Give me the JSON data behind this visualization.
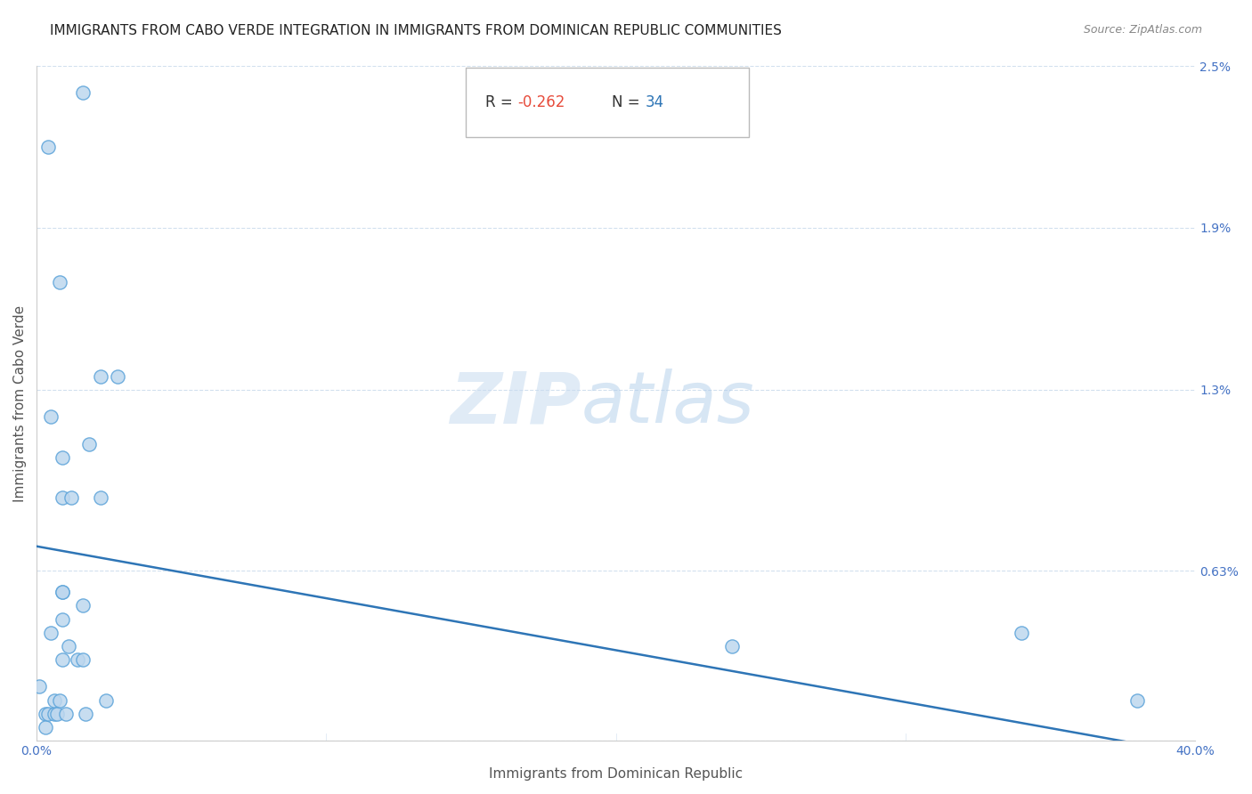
{
  "title": "IMMIGRANTS FROM CABO VERDE INTEGRATION IN IMMIGRANTS FROM DOMINICAN REPUBLIC COMMUNITIES",
  "source": "Source: ZipAtlas.com",
  "xlabel": "Immigrants from Dominican Republic",
  "ylabel": "Immigrants from Cabo Verde",
  "R_value": -0.262,
  "N_value": 34,
  "xlim": [
    0.0,
    0.4
  ],
  "ylim": [
    0.0,
    0.025
  ],
  "yticks": [
    0.0,
    0.0063,
    0.013,
    0.019,
    0.025
  ],
  "ytick_labels": [
    "",
    "0.63%",
    "1.3%",
    "1.9%",
    "2.5%"
  ],
  "xticks": [
    0.0,
    0.1,
    0.2,
    0.3,
    0.4
  ],
  "xtick_labels": [
    "0.0%",
    "",
    "",
    "",
    "40.0%"
  ],
  "scatter_x": [
    0.004,
    0.016,
    0.008,
    0.028,
    0.022,
    0.005,
    0.009,
    0.009,
    0.009,
    0.012,
    0.018,
    0.009,
    0.009,
    0.016,
    0.022,
    0.005,
    0.009,
    0.011,
    0.014,
    0.016,
    0.001,
    0.003,
    0.003,
    0.004,
    0.006,
    0.006,
    0.007,
    0.008,
    0.01,
    0.017,
    0.024,
    0.24,
    0.34,
    0.38
  ],
  "scatter_y": [
    0.022,
    0.024,
    0.017,
    0.0135,
    0.0135,
    0.012,
    0.0105,
    0.009,
    0.0055,
    0.009,
    0.011,
    0.0055,
    0.0045,
    0.005,
    0.009,
    0.004,
    0.003,
    0.0035,
    0.003,
    0.003,
    0.002,
    0.001,
    0.0005,
    0.001,
    0.001,
    0.0015,
    0.001,
    0.0015,
    0.001,
    0.001,
    0.0015,
    0.0035,
    0.004,
    0.0015
  ],
  "scatter_color_fill": "#BDD7EE",
  "scatter_color_edge": "#5BA3D9",
  "scatter_size": 120,
  "line_color": "#2E75B6",
  "line_width": 1.8,
  "regression_x0": 0.0,
  "regression_y0": 0.0072,
  "regression_x1": 0.4,
  "regression_y1": -0.0005,
  "grid_color": "#C0D4E8",
  "grid_style": "--",
  "grid_alpha": 0.7,
  "watermark_zip": "ZIP",
  "watermark_atlas": "atlas",
  "title_fontsize": 11,
  "axis_label_fontsize": 11,
  "tick_label_color": "#4472C4",
  "tick_label_fontsize": 10,
  "R_color": "#E74C3C",
  "N_color": "#2E75B6",
  "annotation_fontsize": 12,
  "background_color": "#FFFFFF"
}
